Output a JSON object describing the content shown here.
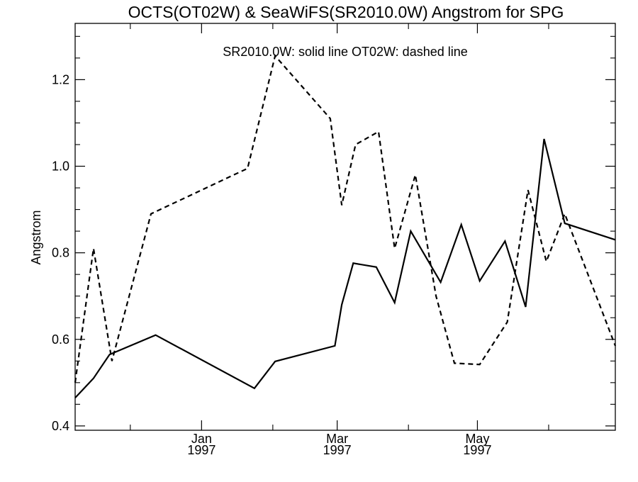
{
  "chart_data": {
    "type": "line",
    "title": "OCTS(OT02W) & SeaWiFS(SR2010.0W)  Angstrom for SPG",
    "legend_text": "SR2010.0W: solid line   OT02W: dashed line",
    "ylabel": "Angstrom",
    "xlabel": "",
    "xlim": [
      "1996-11-07",
      "1997-06-30"
    ],
    "ylim": [
      0.39,
      1.33
    ],
    "y_ticks": [
      0.4,
      0.6,
      0.8,
      1.0,
      1.2
    ],
    "y_tick_labels": [
      "0.4",
      "0.6",
      "0.8",
      "1.0",
      "1.2"
    ],
    "x_major_ticks": [
      {
        "date": "1997-01-01",
        "label_month": "Jan",
        "label_year": "1997"
      },
      {
        "date": "1997-03-01",
        "label_month": "Mar",
        "label_year": "1997"
      },
      {
        "date": "1997-05-01",
        "label_month": "May",
        "label_year": "1997"
      }
    ],
    "x_minor_ticks": [
      "1996-12-01",
      "1997-02-01",
      "1997-04-01",
      "1997-06-01"
    ],
    "grid": false,
    "series": [
      {
        "name": "SR2010.0W",
        "style": "solid",
        "color": "#000000",
        "x": [
          "1996-11-07",
          "1996-11-15",
          "1996-11-22",
          "1996-12-12",
          "1997-01-24",
          "1997-02-02",
          "1997-02-28",
          "1997-03-03",
          "1997-03-08",
          "1997-03-18",
          "1997-03-26",
          "1997-04-02",
          "1997-04-15",
          "1997-04-24",
          "1997-05-02",
          "1997-05-13",
          "1997-05-22",
          "1997-05-30",
          "1997-06-08",
          "1997-06-30"
        ],
        "values": [
          0.465,
          0.51,
          0.565,
          0.61,
          0.487,
          0.549,
          0.585,
          0.68,
          0.776,
          0.767,
          0.685,
          0.85,
          0.732,
          0.865,
          0.735,
          0.827,
          0.675,
          1.063,
          0.868,
          0.83
        ]
      },
      {
        "name": "OT02W",
        "style": "dashed",
        "color": "#000000",
        "x": [
          "1996-11-07",
          "1996-11-15",
          "1996-11-23",
          "1996-12-10",
          "1997-01-21",
          "1997-02-02",
          "1997-02-26",
          "1997-03-03",
          "1997-03-09",
          "1997-03-19",
          "1997-03-26",
          "1997-04-04",
          "1997-04-13",
          "1997-04-21",
          "1997-05-02",
          "1997-05-14",
          "1997-05-23",
          "1997-05-31",
          "1997-06-08",
          "1997-06-30"
        ],
        "values": [
          0.5,
          0.81,
          0.55,
          0.89,
          0.995,
          1.255,
          1.11,
          0.91,
          1.05,
          1.08,
          0.81,
          0.98,
          0.7,
          0.545,
          0.542,
          0.64,
          0.945,
          0.78,
          0.89,
          0.585
        ]
      }
    ]
  }
}
